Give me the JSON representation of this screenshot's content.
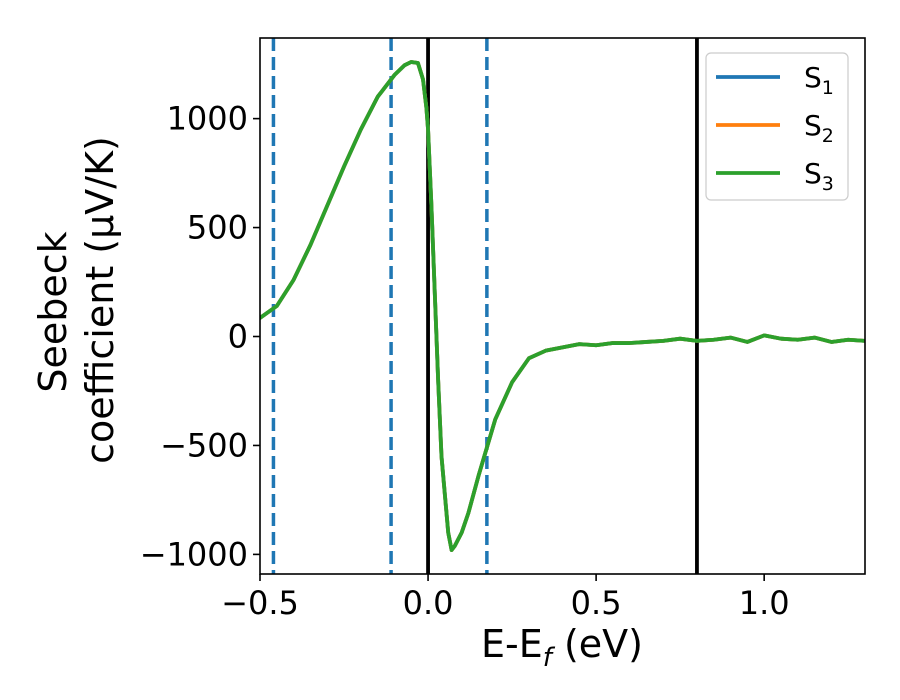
{
  "chart_data": {
    "type": "line",
    "xlabel": "E-E",
    "xlabel_sub": "f",
    "xlabel_unit": " (eV)",
    "ylabel_line1": "Seebeck",
    "ylabel_line2": "coefficient  (μV/K)",
    "xlim": [
      -0.5,
      1.3
    ],
    "ylim": [
      -1090,
      1370
    ],
    "x_ticks": [
      -0.5,
      0.0,
      0.5,
      1.0
    ],
    "x_tick_labels": [
      "−0.5",
      "0.0",
      "0.5",
      "1.0"
    ],
    "y_ticks": [
      -1000,
      -500,
      0,
      500,
      1000
    ],
    "y_tick_labels": [
      "−1000",
      "−500",
      "0",
      "500",
      "1000"
    ],
    "grid": false,
    "legend_position": "top-right",
    "series": [
      {
        "name": "S",
        "sub": "1",
        "color": "#1f77b4",
        "x": [
          -0.5,
          -0.45,
          -0.4,
          -0.35,
          -0.3,
          -0.25,
          -0.2,
          -0.15,
          -0.1,
          -0.07,
          -0.05,
          -0.03,
          -0.015,
          -0.005,
          0.0,
          0.01,
          0.02,
          0.03,
          0.04,
          0.06,
          0.07,
          0.08,
          0.1,
          0.12,
          0.15,
          0.2,
          0.25,
          0.3,
          0.35,
          0.4,
          0.45,
          0.5,
          0.55,
          0.6,
          0.65,
          0.7,
          0.75,
          0.8,
          0.85,
          0.9,
          0.95,
          1.0,
          1.05,
          1.1,
          1.15,
          1.2,
          1.25,
          1.3
        ],
        "y": [
          85,
          140,
          260,
          420,
          600,
          780,
          950,
          1100,
          1200,
          1245,
          1260,
          1255,
          1180,
          1050,
          950,
          600,
          200,
          -200,
          -550,
          -900,
          -980,
          -960,
          -900,
          -810,
          -640,
          -380,
          -210,
          -100,
          -65,
          -50,
          -35,
          -40,
          -30,
          -30,
          -25,
          -20,
          -10,
          -20,
          -15,
          -5,
          -25,
          5,
          -10,
          -15,
          -5,
          -25,
          -15,
          -20
        ]
      },
      {
        "name": "S",
        "sub": "2",
        "color": "#ff7f0e",
        "x": [
          -0.5,
          -0.45,
          -0.4,
          -0.35,
          -0.3,
          -0.25,
          -0.2,
          -0.15,
          -0.1,
          -0.07,
          -0.05,
          -0.03,
          -0.015,
          -0.005,
          0.0,
          0.01,
          0.02,
          0.03,
          0.04,
          0.06,
          0.07,
          0.08,
          0.1,
          0.12,
          0.15,
          0.2,
          0.25,
          0.3,
          0.35,
          0.4,
          0.45,
          0.5,
          0.55,
          0.6,
          0.65,
          0.7,
          0.75,
          0.8,
          0.85,
          0.9,
          0.95,
          1.0,
          1.05,
          1.1,
          1.15,
          1.2,
          1.25,
          1.3
        ],
        "y": [
          85,
          140,
          260,
          420,
          600,
          780,
          950,
          1100,
          1200,
          1245,
          1260,
          1255,
          1180,
          1050,
          950,
          600,
          200,
          -200,
          -550,
          -900,
          -980,
          -960,
          -900,
          -810,
          -640,
          -380,
          -210,
          -100,
          -65,
          -50,
          -35,
          -40,
          -30,
          -30,
          -25,
          -20,
          -10,
          -20,
          -15,
          -5,
          -25,
          5,
          -10,
          -15,
          -5,
          -25,
          -15,
          -20
        ]
      },
      {
        "name": "S",
        "sub": "3",
        "color": "#2ca02c",
        "x": [
          -0.5,
          -0.45,
          -0.4,
          -0.35,
          -0.3,
          -0.25,
          -0.2,
          -0.15,
          -0.1,
          -0.07,
          -0.05,
          -0.03,
          -0.015,
          -0.005,
          0.0,
          0.01,
          0.02,
          0.03,
          0.04,
          0.06,
          0.07,
          0.08,
          0.1,
          0.12,
          0.15,
          0.2,
          0.25,
          0.3,
          0.35,
          0.4,
          0.45,
          0.5,
          0.55,
          0.6,
          0.65,
          0.7,
          0.75,
          0.8,
          0.85,
          0.9,
          0.95,
          1.0,
          1.05,
          1.1,
          1.15,
          1.2,
          1.25,
          1.3
        ],
        "y": [
          85,
          140,
          260,
          420,
          600,
          780,
          950,
          1100,
          1200,
          1245,
          1260,
          1255,
          1180,
          1050,
          950,
          600,
          200,
          -200,
          -550,
          -900,
          -980,
          -960,
          -900,
          -810,
          -640,
          -380,
          -210,
          -100,
          -65,
          -50,
          -35,
          -40,
          -30,
          -30,
          -25,
          -20,
          -10,
          -20,
          -15,
          -5,
          -25,
          5,
          -10,
          -15,
          -5,
          -25,
          -15,
          -20
        ]
      }
    ],
    "vertical_lines": [
      {
        "x": -0.46,
        "style": "dashed",
        "color": "#1f77b4"
      },
      {
        "x": -0.11,
        "style": "dashed",
        "color": "#1f77b4"
      },
      {
        "x": 0.175,
        "style": "dashed",
        "color": "#1f77b4"
      },
      {
        "x": 0.0,
        "style": "solid",
        "color": "#000000"
      },
      {
        "x": 0.8,
        "style": "solid",
        "color": "#000000"
      }
    ]
  }
}
